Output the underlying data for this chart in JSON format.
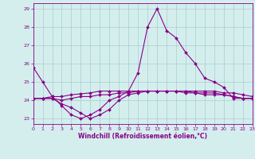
{
  "x": [
    0,
    1,
    2,
    3,
    4,
    5,
    6,
    7,
    8,
    9,
    10,
    11,
    12,
    13,
    14,
    15,
    16,
    17,
    18,
    19,
    20,
    21,
    22,
    23
  ],
  "line1": [
    25.8,
    25.0,
    24.2,
    23.7,
    23.2,
    23.0,
    23.2,
    23.5,
    24.0,
    24.2,
    24.5,
    25.5,
    28.0,
    29.0,
    27.8,
    27.4,
    26.6,
    26.0,
    25.2,
    25.0,
    24.7,
    24.1,
    24.1,
    24.1
  ],
  "line2": [
    24.1,
    24.1,
    24.1,
    24.0,
    24.1,
    24.2,
    24.2,
    24.3,
    24.3,
    24.4,
    24.4,
    24.5,
    24.5,
    24.5,
    24.5,
    24.5,
    24.4,
    24.4,
    24.3,
    24.3,
    24.3,
    24.2,
    24.1,
    24.1
  ],
  "line3": [
    24.1,
    24.1,
    24.2,
    24.2,
    24.3,
    24.35,
    24.4,
    24.5,
    24.5,
    24.5,
    24.5,
    24.5,
    24.5,
    24.5,
    24.5,
    24.5,
    24.5,
    24.5,
    24.5,
    24.5,
    24.4,
    24.4,
    24.3,
    24.2
  ],
  "line4": [
    24.1,
    24.1,
    24.1,
    23.8,
    23.6,
    23.3,
    23.0,
    23.2,
    23.5,
    24.0,
    24.3,
    24.4,
    24.5,
    24.5,
    24.5,
    24.5,
    24.5,
    24.4,
    24.4,
    24.4,
    24.3,
    24.2,
    24.1,
    24.1
  ],
  "ylim": [
    22.7,
    29.3
  ],
  "xlim": [
    0,
    23
  ],
  "yticks": [
    23,
    24,
    25,
    26,
    27,
    28,
    29
  ],
  "xticks": [
    0,
    1,
    2,
    3,
    4,
    5,
    6,
    7,
    8,
    9,
    10,
    11,
    12,
    13,
    14,
    15,
    16,
    17,
    18,
    19,
    20,
    21,
    22,
    23
  ],
  "xlabel": "Windchill (Refroidissement éolien,°C)",
  "line_color": "#880088",
  "bg_color": "#d4eeee",
  "grid_color": "#aacccc",
  "markersize": 2.0,
  "linewidth": 0.8
}
